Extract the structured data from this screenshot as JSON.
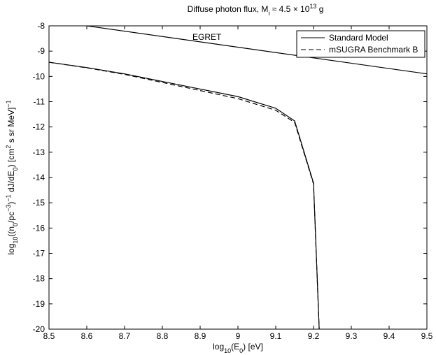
{
  "chart_data": {
    "type": "line",
    "title": [
      "Diffuse photon flux, M",
      "i",
      " ≈ 4.5 × 10",
      "13",
      " g"
    ],
    "xlabel": [
      "log",
      "10",
      "(E",
      "0",
      ") [eV]"
    ],
    "ylabel": [
      "log",
      "10",
      "((n",
      "0",
      "/pc",
      "−3",
      ")",
      "−1",
      " dJ/dE",
      "0",
      ") [cm",
      "2",
      " s sr MeV]",
      "−1"
    ],
    "xlim": [
      8.5,
      9.5
    ],
    "ylim": [
      -20,
      -8
    ],
    "xticks": [
      8.5,
      8.6,
      8.7,
      8.8,
      8.9,
      9,
      9.1,
      9.2,
      9.3,
      9.4,
      9.5
    ],
    "yticks": [
      -20,
      -19,
      -18,
      -17,
      -16,
      -15,
      -14,
      -13,
      -12,
      -11,
      -10,
      -9,
      -8
    ],
    "legend": "upper right",
    "reference_line": {
      "label": "EGRET",
      "color": "#000000",
      "x": [
        8.6,
        9.5
      ],
      "values": [
        -8,
        -9.9
      ]
    },
    "series": [
      {
        "name": "Standard Model",
        "color": "#000000",
        "linestyle": "solid",
        "x": [
          8.5,
          8.6,
          8.7,
          8.8,
          8.9,
          9.0,
          9.1,
          9.15,
          9.2,
          9.215
        ],
        "values": [
          -9.44,
          -9.65,
          -9.9,
          -10.2,
          -10.5,
          -10.8,
          -11.26,
          -11.76,
          -14.22,
          -20
        ]
      },
      {
        "name": "mSUGRA Benchmark B",
        "color": "#000000",
        "linestyle": "dashed",
        "x": [
          8.5,
          8.6,
          8.7,
          8.8,
          8.9,
          9.0,
          9.1,
          9.15,
          9.2,
          9.215
        ],
        "values": [
          -9.44,
          -9.66,
          -9.92,
          -10.24,
          -10.56,
          -10.88,
          -11.34,
          -11.82,
          -14.26,
          -20
        ]
      }
    ]
  }
}
